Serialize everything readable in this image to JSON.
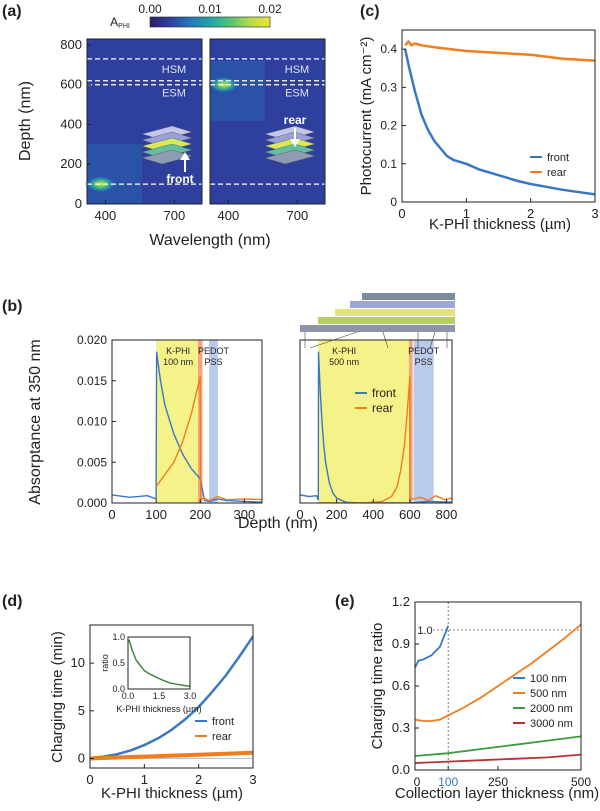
{
  "figure": {
    "panel_labels": [
      "(a)",
      "(b)",
      "(c)",
      "(d)",
      "(e)"
    ]
  },
  "colors": {
    "front": "#3a78c4",
    "rear": "#f07d1e",
    "yellow_band": "#f5f28a",
    "blue_band": "#b9cbec",
    "red_band": "#f2a57e",
    "grey_line": "#9a9a9a",
    "cmap": [
      "#2a1f6e",
      "#2f3f9e",
      "#2378b8",
      "#21a4a8",
      "#53c573",
      "#b5d94a",
      "#f1e43a"
    ]
  },
  "chart_data": [
    {
      "panel": "(a)",
      "type": "heatmap",
      "colorbar_label": "A_PHI",
      "colorbar_ticks": [
        "0.00",
        "0.01",
        "0.02"
      ],
      "colorbar_range": [
        0,
        0.02
      ],
      "ylabel": "Depth (nm)",
      "xlabel": "Wavelength (nm)",
      "xlim": [
        320,
        820
      ],
      "ylim": [
        0,
        830
      ],
      "xticks": [
        400,
        700
      ],
      "yticks": [
        0,
        200,
        400,
        600,
        800
      ],
      "layer_lines": [
        730,
        620,
        600,
        100
      ],
      "layer_labels": [
        {
          "text": "HSM",
          "depth": 680
        },
        {
          "text": "ESM",
          "depth": 560
        }
      ],
      "subplots": [
        {
          "name": "front",
          "annotation": "front",
          "hotspot": {
            "x": 380,
            "y": 100
          }
        },
        {
          "name": "rear",
          "annotation": "rear",
          "hotspot": {
            "x": 380,
            "y": 600
          }
        }
      ]
    },
    {
      "panel": "(c)",
      "type": "line",
      "xlabel": "K-PHI thickness (µm)",
      "ylabel": "Photocurrent (mA cm⁻²)",
      "xlim": [
        0,
        3
      ],
      "ylim": [
        0,
        0.45
      ],
      "xticks": [
        0,
        1,
        2,
        3
      ],
      "yticks": [
        0,
        0.1,
        0.2,
        0.3,
        0.4
      ],
      "legend_pos": "right",
      "series": [
        {
          "name": "front",
          "x": [
            0.05,
            0.1,
            0.2,
            0.3,
            0.4,
            0.5,
            0.6,
            0.7,
            0.8,
            1.0,
            1.2,
            1.5,
            1.8,
            2.0,
            2.5,
            3.0
          ],
          "y": [
            0.4,
            0.36,
            0.29,
            0.23,
            0.19,
            0.16,
            0.14,
            0.12,
            0.11,
            0.1,
            0.085,
            0.07,
            0.055,
            0.047,
            0.032,
            0.02
          ]
        },
        {
          "name": "rear",
          "x": [
            0.05,
            0.1,
            0.15,
            0.2,
            0.3,
            0.5,
            0.75,
            1.0,
            1.5,
            2.0,
            2.5,
            3.0
          ],
          "y": [
            0.41,
            0.42,
            0.41,
            0.415,
            0.41,
            0.405,
            0.4,
            0.395,
            0.39,
            0.385,
            0.375,
            0.37
          ]
        }
      ]
    },
    {
      "panel": "(b)",
      "type": "line",
      "ylabel": "Absorptance at 350 nm",
      "xlabel": "Depth (nm)",
      "ylim": [
        0,
        0.02
      ],
      "yticks": [
        "0.000",
        "0.005",
        "0.010",
        "0.015",
        "0.020"
      ],
      "subplots": [
        {
          "xlim": [
            0,
            340
          ],
          "xticks": [
            0,
            100,
            200,
            300
          ],
          "kphi_band": [
            100,
            200
          ],
          "kphi_label": [
            "K-PHI",
            "100 nm"
          ],
          "pedot_band": [
            220,
            240
          ],
          "pedot_label": [
            "PEDOT",
            "PSS"
          ],
          "red_band": [
            195,
            205
          ],
          "series": [
            {
              "name": "front",
              "x": [
                0,
                40,
                80,
                100,
                101,
                110,
                120,
                140,
                160,
                180,
                200,
                210,
                220,
                240,
                260,
                300,
                340
              ],
              "y": [
                0.001,
                0.0007,
                0.0009,
                0.0005,
                0.0185,
                0.015,
                0.012,
                0.0085,
                0.006,
                0.0042,
                0.003,
                0.0003,
                0.0002,
                0.0005,
                0.0003,
                0.0002,
                0.0001
              ]
            },
            {
              "name": "rear",
              "x": [
                100,
                120,
                140,
                160,
                180,
                200,
                201,
                210,
                220,
                240,
                260,
                300,
                340
              ],
              "y": [
                0.002,
                0.0035,
                0.005,
                0.0075,
                0.011,
                0.0155,
                0.0005,
                0.0006,
                0.0003,
                0.0008,
                0.0004,
                0.0005,
                0.0004
              ]
            }
          ]
        },
        {
          "xlim": [
            0,
            830
          ],
          "xticks": [
            0,
            200,
            400,
            600,
            800
          ],
          "kphi_band": [
            100,
            600
          ],
          "kphi_label": [
            "K-PHI",
            "500 nm"
          ],
          "pedot_band": [
            620,
            730
          ],
          "pedot_label": [
            "PEDOT",
            "PSS"
          ],
          "red_band": [
            595,
            615
          ],
          "legend": [
            "front",
            "rear"
          ],
          "series": [
            {
              "name": "front",
              "x": [
                0,
                50,
                90,
                100,
                101,
                110,
                120,
                130,
                140,
                160,
                180,
                200,
                250,
                300,
                400,
                600,
                700,
                830
              ],
              "y": [
                0.001,
                0.0008,
                0.0009,
                0.0004,
                0.0185,
                0.014,
                0.01,
                0.007,
                0.005,
                0.0025,
                0.0012,
                0.0006,
                0.0001,
                2e-05,
                0.0,
                0.0,
                0.0002,
                0.0001
              ]
            },
            {
              "name": "rear",
              "x": [
                100,
                350,
                450,
                500,
                530,
                550,
                570,
                585,
                600,
                601,
                620,
                660,
                700,
                740,
                790,
                830
              ],
              "y": [
                0.0,
                0.0,
                0.0002,
                0.0008,
                0.002,
                0.004,
                0.007,
                0.011,
                0.0155,
                0.0006,
                0.0005,
                0.0007,
                0.0003,
                0.0009,
                0.0004,
                0.0006
              ]
            }
          ]
        }
      ]
    },
    {
      "panel": "(d)",
      "type": "line",
      "xlabel": "K-PHI thickness (µm)",
      "ylabel": "Charging time (min)",
      "xlim": [
        0,
        3
      ],
      "ylim": [
        -1,
        14
      ],
      "xticks": [
        0,
        1,
        2,
        3
      ],
      "yticks": [
        0,
        5,
        10
      ],
      "legend_pos": "right",
      "series": [
        {
          "name": "front",
          "x": [
            0,
            0.25,
            0.5,
            0.75,
            1.0,
            1.25,
            1.5,
            1.75,
            2.0,
            2.25,
            2.5,
            2.75,
            3.0
          ],
          "y": [
            0.05,
            0.2,
            0.45,
            0.85,
            1.4,
            2.1,
            3.0,
            4.1,
            5.4,
            7.0,
            8.7,
            10.7,
            12.8
          ]
        },
        {
          "name": "rear",
          "x": [
            0,
            0.5,
            1.0,
            1.5,
            2.0,
            2.5,
            3.0
          ],
          "y": [
            0.0,
            0.1,
            0.2,
            0.3,
            0.4,
            0.5,
            0.6
          ]
        }
      ],
      "inset": {
        "ylabel": "ratio",
        "xlabel": "K-PHI thickness (µm)",
        "xlim": [
          0,
          3
        ],
        "ylim": [
          0,
          1
        ],
        "xticks": [
          "0.0",
          "1.5",
          "3.0"
        ],
        "yticks": [
          "0.0",
          "0.5",
          "1.0"
        ],
        "x": [
          0.05,
          0.2,
          0.4,
          0.6,
          0.8,
          1.0,
          1.5,
          2.0,
          2.5,
          3.0
        ],
        "y": [
          0.95,
          0.75,
          0.55,
          0.45,
          0.35,
          0.3,
          0.2,
          0.12,
          0.08,
          0.05
        ]
      }
    },
    {
      "panel": "(e)",
      "type": "line",
      "xlabel": "Collection layer thickness (nm)",
      "ylabel": "Charging time ratio",
      "xlim": [
        0,
        500
      ],
      "ylim": [
        0,
        1.2
      ],
      "xticks": [
        "0",
        "100",
        "250",
        "500"
      ],
      "yticks": [
        "0.0",
        "0.3",
        "0.6",
        "0.9",
        "1.2"
      ],
      "ref_line_label": "1.0",
      "ref_x": 100,
      "ref_y": 1.0,
      "legend_pos": "right",
      "series": [
        {
          "name": "100 nm",
          "color": "#3a78c4",
          "x": [
            0,
            10,
            25,
            50,
            75,
            100
          ],
          "y": [
            0.73,
            0.78,
            0.79,
            0.82,
            0.88,
            1.03
          ]
        },
        {
          "name": "500 nm",
          "color": "#f07d1e",
          "x": [
            0,
            25,
            50,
            75,
            100,
            150,
            200,
            250,
            300,
            350,
            400,
            450,
            500
          ],
          "y": [
            0.36,
            0.35,
            0.35,
            0.36,
            0.39,
            0.45,
            0.52,
            0.6,
            0.68,
            0.76,
            0.85,
            0.94,
            1.04
          ]
        },
        {
          "name": "2000 nm",
          "color": "#3d9a3d",
          "x": [
            0,
            100,
            200,
            300,
            400,
            500
          ],
          "y": [
            0.1,
            0.12,
            0.15,
            0.18,
            0.21,
            0.24
          ]
        },
        {
          "name": "3000 nm",
          "color": "#b83232",
          "x": [
            0,
            100,
            200,
            300,
            400,
            500
          ],
          "y": [
            0.05,
            0.06,
            0.07,
            0.08,
            0.09,
            0.11
          ]
        }
      ]
    }
  ]
}
